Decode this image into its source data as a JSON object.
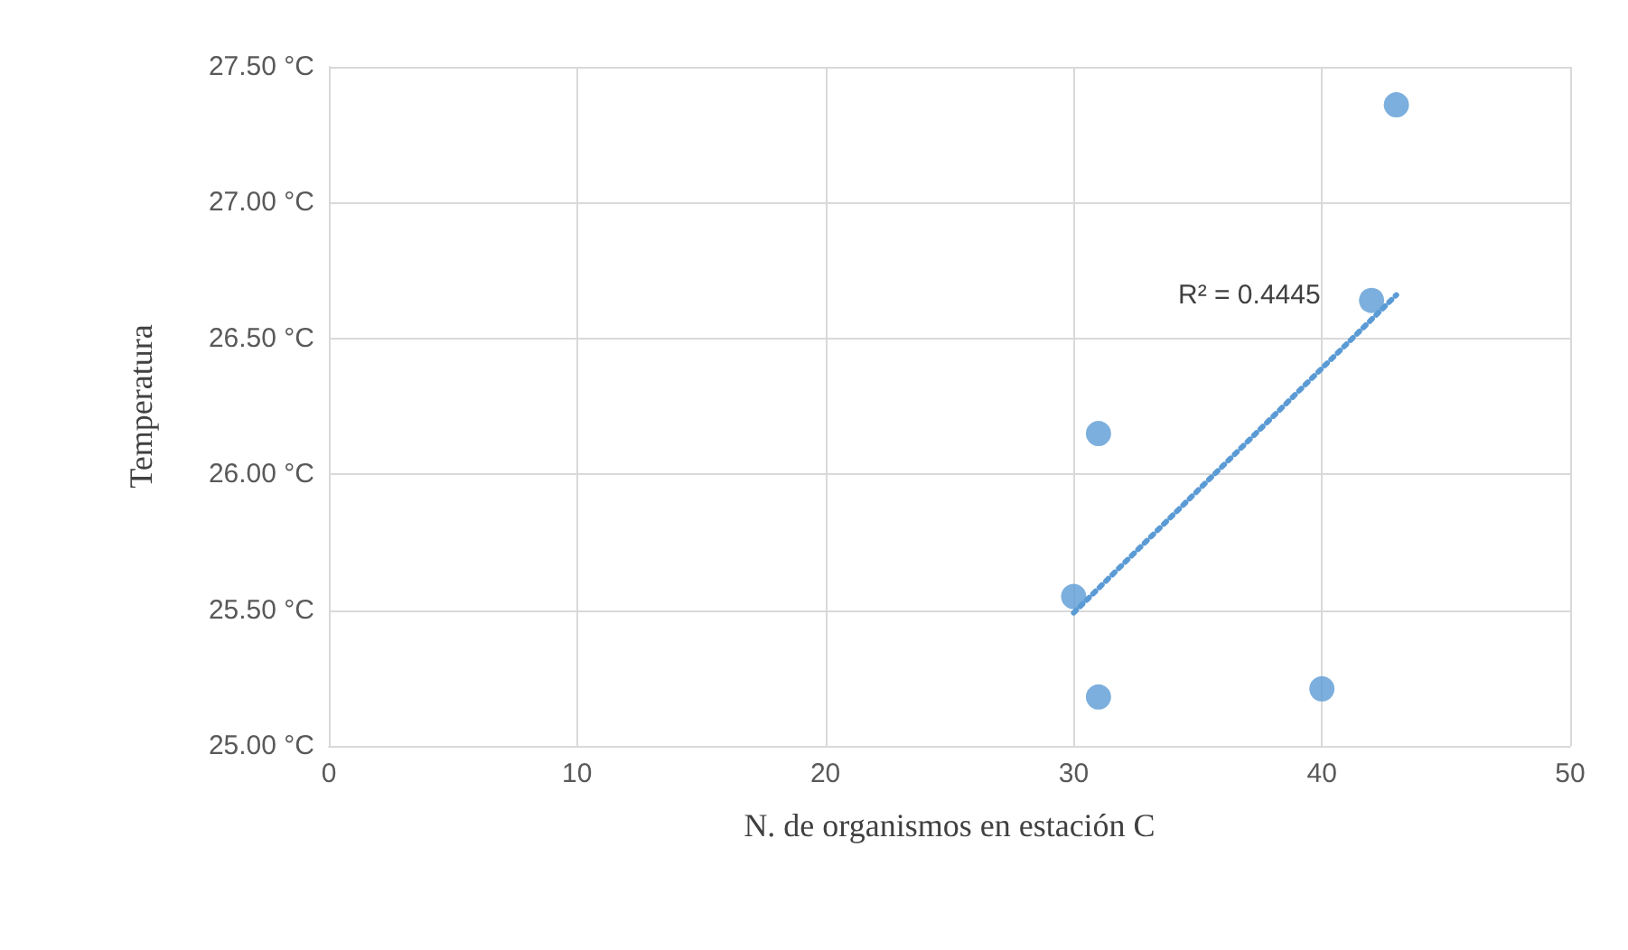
{
  "chart_data": {
    "type": "scatter",
    "xlabel": "N. de organismos en estación C",
    "ylabel": "Temperatura",
    "xlim": [
      0,
      50
    ],
    "xticks": [
      0,
      10,
      20,
      30,
      40,
      50
    ],
    "ylim": [
      25,
      27.5
    ],
    "yticks": [
      {
        "value": 25,
        "label": "25.00 °C"
      },
      {
        "value": 25.5,
        "label": "25.50 °C"
      },
      {
        "value": 26,
        "label": "26.00 °C"
      },
      {
        "value": 26.5,
        "label": "26.50 °C"
      },
      {
        "value": 27,
        "label": "27.00 °C"
      },
      {
        "value": 27.5,
        "label": "27.50 °C"
      }
    ],
    "grid": true,
    "marker": "circle",
    "series": [
      {
        "color": "#5b9bd5",
        "x": [
          30,
          31,
          31,
          40,
          42,
          43
        ],
        "values": [
          25.55,
          26.15,
          25.18,
          25.21,
          26.64,
          27.36
        ]
      },
      {
        "type": "line",
        "color": "#5b9bd5",
        "line_style": "dotted",
        "marker": "none",
        "x": [
          30,
          43
        ],
        "values": [
          25.49,
          26.66
        ]
      }
    ],
    "annotations": [
      "R² = 0.4445"
    ]
  }
}
